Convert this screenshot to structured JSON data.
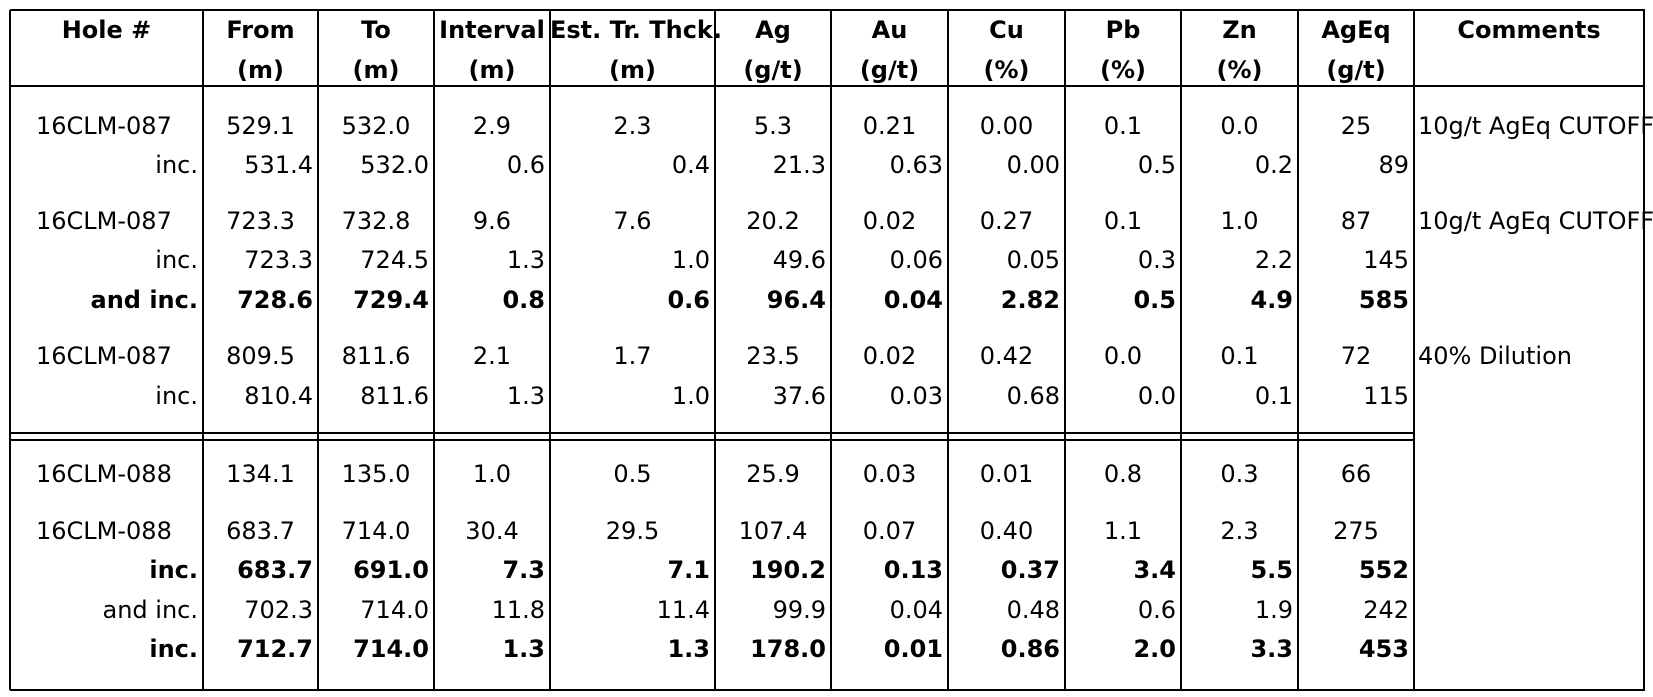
{
  "headers": [
    {
      "top": "Hole #",
      "bottom": ""
    },
    {
      "top": "From",
      "bottom": "(m)"
    },
    {
      "top": "To",
      "bottom": "(m)"
    },
    {
      "top": "Interval",
      "bottom": "(m)"
    },
    {
      "top": "Est. Tr. Thck.",
      "bottom": "(m)"
    },
    {
      "top": "Ag",
      "bottom": "(g/t)"
    },
    {
      "top": "Au",
      "bottom": "(g/t)"
    },
    {
      "top": "Cu",
      "bottom": "(%)"
    },
    {
      "top": "Pb",
      "bottom": "(%)"
    },
    {
      "top": "Zn",
      "bottom": "(%)"
    },
    {
      "top": "AgEq",
      "bottom": "(g/t)"
    },
    {
      "top": "Comments",
      "bottom": ""
    }
  ],
  "rows": [
    {
      "kind": "main",
      "bold": false,
      "hole": "16CLM-087",
      "values": [
        "529.1",
        "532.0",
        "2.9",
        "2.3",
        "5.3",
        "0.21",
        "0.00",
        "0.1",
        "0.0",
        "25"
      ],
      "comment": "10g/t AgEq CUTOFF"
    },
    {
      "kind": "inc",
      "bold": false,
      "hole": "inc.",
      "values": [
        "531.4",
        "532.0",
        "0.6",
        "0.4",
        "21.3",
        "0.63",
        "0.00",
        "0.5",
        "0.2",
        "89"
      ],
      "comment": ""
    },
    {
      "kind": "main",
      "bold": false,
      "hole": "16CLM-087",
      "values": [
        "723.3",
        "732.8",
        "9.6",
        "7.6",
        "20.2",
        "0.02",
        "0.27",
        "0.1",
        "1.0",
        "87"
      ],
      "comment": "10g/t AgEq CUTOFF"
    },
    {
      "kind": "inc",
      "bold": false,
      "hole": "inc.",
      "values": [
        "723.3",
        "724.5",
        "1.3",
        "1.0",
        "49.6",
        "0.06",
        "0.05",
        "0.3",
        "2.2",
        "145"
      ],
      "comment": ""
    },
    {
      "kind": "inc",
      "bold": true,
      "hole": "and inc.",
      "values": [
        "728.6",
        "729.4",
        "0.8",
        "0.6",
        "96.4",
        "0.04",
        "2.82",
        "0.5",
        "4.9",
        "585"
      ],
      "comment": ""
    },
    {
      "kind": "main",
      "bold": false,
      "hole": "16CLM-087",
      "values": [
        "809.5",
        "811.6",
        "2.1",
        "1.7",
        "23.5",
        "0.02",
        "0.42",
        "0.0",
        "0.1",
        "72"
      ],
      "comment": "40% Dilution"
    },
    {
      "kind": "inc",
      "bold": false,
      "hole": "inc.",
      "values": [
        "810.4",
        "811.6",
        "1.3",
        "1.0",
        "37.6",
        "0.03",
        "0.68",
        "0.0",
        "0.1",
        "115"
      ],
      "comment": ""
    },
    {
      "kind": "main",
      "bold": false,
      "hole": "16CLM-088",
      "values": [
        "134.1",
        "135.0",
        "1.0",
        "0.5",
        "25.9",
        "0.03",
        "0.01",
        "0.8",
        "0.3",
        "66"
      ],
      "comment": ""
    },
    {
      "kind": "main",
      "bold": false,
      "hole": "16CLM-088",
      "values": [
        "683.7",
        "714.0",
        "30.4",
        "29.5",
        "107.4",
        "0.07",
        "0.40",
        "1.1",
        "2.3",
        "275"
      ],
      "comment": ""
    },
    {
      "kind": "inc",
      "bold": true,
      "hole": "inc.",
      "values": [
        "683.7",
        "691.0",
        "7.3",
        "7.1",
        "190.2",
        "0.13",
        "0.37",
        "3.4",
        "5.5",
        "552"
      ],
      "comment": ""
    },
    {
      "kind": "inc",
      "bold": false,
      "hole": "and inc.",
      "values": [
        "702.3",
        "714.0",
        "11.8",
        "11.4",
        "99.9",
        "0.04",
        "0.48",
        "0.6",
        "1.9",
        "242"
      ],
      "comment": ""
    },
    {
      "kind": "inc",
      "bold": true,
      "hole": "inc.",
      "values": [
        "712.7",
        "714.0",
        "1.3",
        "1.3",
        "178.0",
        "0.01",
        "0.86",
        "2.0",
        "3.3",
        "453"
      ],
      "comment": ""
    }
  ]
}
